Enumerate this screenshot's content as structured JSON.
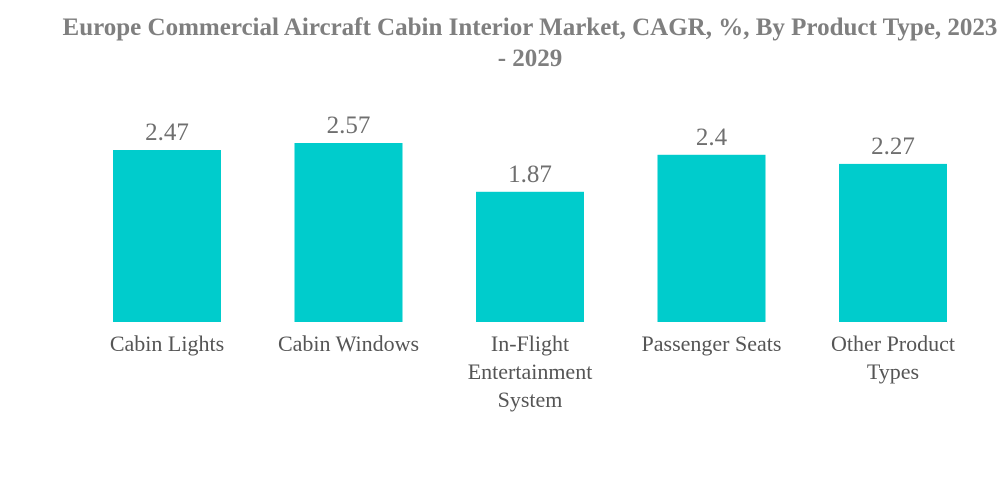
{
  "chart_data": {
    "type": "bar",
    "title": "Europe Commercial Aircraft Cabin Interior Market, CAGR, %, By Product Type, 2023 - 2029",
    "categories": [
      [
        "Cabin Lights"
      ],
      [
        "Cabin Windows"
      ],
      [
        "In-Flight",
        "Entertainment",
        "System"
      ],
      [
        "Passenger Seats"
      ],
      [
        "Other Product",
        "Types"
      ]
    ],
    "values": [
      2.47,
      2.57,
      1.87,
      2.4,
      2.27
    ],
    "value_labels": [
      "2.47",
      "2.57",
      "1.87",
      "2.4",
      "2.27"
    ],
    "xlabel": "",
    "ylabel": "",
    "ylim": [
      0,
      2.57
    ],
    "grid": false,
    "legend": "none",
    "bar_color": "#00cccc"
  }
}
